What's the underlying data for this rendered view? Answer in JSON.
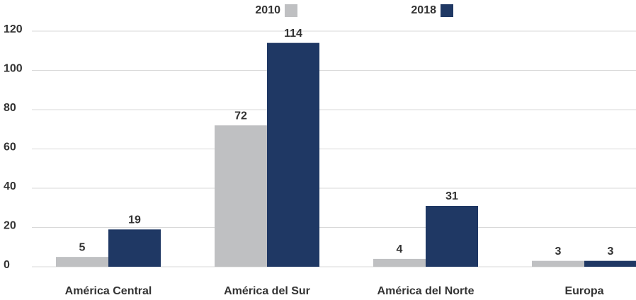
{
  "chart_data": {
    "type": "bar",
    "categories": [
      "América Central",
      "América del Sur",
      "América del Norte",
      "Europa"
    ],
    "series": [
      {
        "name": "2010",
        "color": "#bfc0c2",
        "values": [
          5,
          72,
          4,
          3
        ]
      },
      {
        "name": "2018",
        "color": "#1f3864",
        "values": [
          19,
          114,
          31,
          3
        ]
      }
    ],
    "ylim": [
      0,
      120
    ],
    "yticks": [
      0,
      20,
      40,
      60,
      80,
      100,
      120
    ],
    "grid": true,
    "legend": "top"
  }
}
